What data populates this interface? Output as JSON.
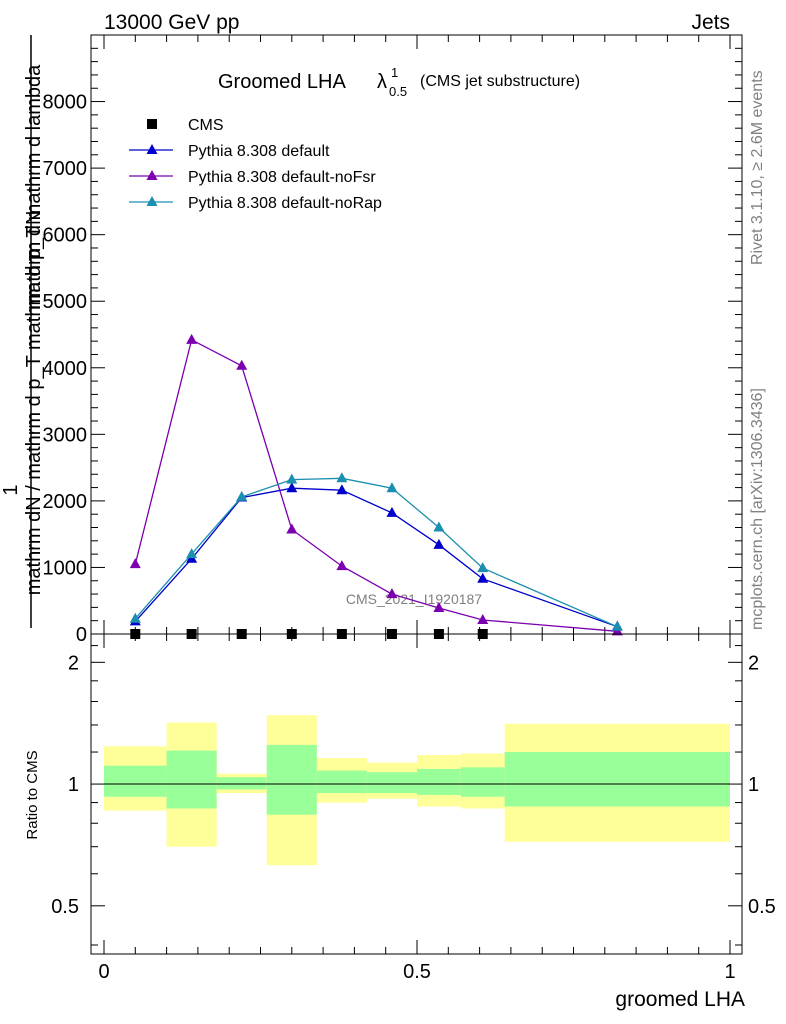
{
  "header": {
    "left": "13000 GeV pp",
    "right": "Jets"
  },
  "side": {
    "rivet": "Rivet 3.1.10, ≥ 2.6M events",
    "mcplots": "mcplots.cern.ch [arXiv:1306.3436]"
  },
  "chart_data": [
    {
      "type": "line",
      "title_main": "Groomed LHA",
      "title_lambda": "λ",
      "title_sup": "1",
      "title_sub": "0.5",
      "title_suffix": "(CMS jet substructure)",
      "ylabel_one": "1",
      "ylabel_num": "mathrm dN",
      "ylabel_den": "mathrm dN / mathrm d p_T mathrm d p_T mathrm d lambda",
      "watermark": "CMS_2021_I1920187",
      "xlim": [
        0,
        1
      ],
      "ylim": [
        0,
        9000
      ],
      "yticks": [
        0,
        1000,
        2000,
        3000,
        4000,
        5000,
        6000,
        7000,
        8000
      ],
      "ytick_labels": [
        "0",
        "1000",
        "2000",
        "3000",
        "4000",
        "5000",
        "6000",
        "7000",
        "8000"
      ],
      "legend_position": "top-left",
      "series": [
        {
          "name": "CMS",
          "color": "#000000",
          "marker": "square",
          "x": [
            0.05,
            0.14,
            0.22,
            0.3,
            0.38,
            0.46,
            0.535,
            0.605
          ],
          "y": [
            0,
            0,
            0,
            0,
            0,
            0,
            0,
            0
          ]
        },
        {
          "name": "Pythia 8.308 default",
          "color": "#0000cc",
          "marker": "triangle",
          "x": [
            0.05,
            0.14,
            0.22,
            0.3,
            0.38,
            0.46,
            0.535,
            0.605,
            0.82
          ],
          "y": [
            190,
            1130,
            2050,
            2190,
            2160,
            1820,
            1340,
            830,
            110
          ]
        },
        {
          "name": "Pythia 8.308 default-noFsr",
          "color": "#7a00b0",
          "marker": "triangle",
          "x": [
            0.05,
            0.14,
            0.22,
            0.3,
            0.38,
            0.46,
            0.535,
            0.605,
            0.82
          ],
          "y": [
            1050,
            4420,
            4030,
            1570,
            1020,
            600,
            390,
            210,
            40
          ]
        },
        {
          "name": "Pythia 8.308 default-noRap",
          "color": "#1b8fb0",
          "marker": "triangle",
          "x": [
            0.05,
            0.14,
            0.22,
            0.3,
            0.38,
            0.46,
            0.535,
            0.605,
            0.82
          ],
          "y": [
            230,
            1200,
            2060,
            2320,
            2340,
            2190,
            1600,
            990,
            110
          ]
        }
      ]
    },
    {
      "type": "area",
      "ylabel": "Ratio to CMS",
      "xlabel": "groomed LHA",
      "xlim": [
        0,
        1
      ],
      "ylim": [
        0.38,
        2.35
      ],
      "log_y": true,
      "yticks": [
        0.5,
        1,
        2
      ],
      "ytick_labels": [
        "0.5",
        "1",
        "2"
      ],
      "xticks": [
        0,
        0.5,
        1
      ],
      "xtick_labels": [
        "0",
        "0.5",
        "1"
      ],
      "band_colors": {
        "inner": "#99ff99",
        "outer": "#ffff99"
      },
      "bands": [
        {
          "x0": 0.0,
          "x1": 0.1,
          "inner": [
            0.93,
            1.11
          ],
          "outer": [
            0.86,
            1.24
          ]
        },
        {
          "x0": 0.1,
          "x1": 0.18,
          "inner": [
            0.87,
            1.21
          ],
          "outer": [
            0.7,
            1.42
          ]
        },
        {
          "x0": 0.18,
          "x1": 0.26,
          "inner": [
            0.97,
            1.04
          ],
          "outer": [
            0.95,
            1.06
          ]
        },
        {
          "x0": 0.26,
          "x1": 0.34,
          "inner": [
            0.84,
            1.25
          ],
          "outer": [
            0.63,
            1.48
          ]
        },
        {
          "x0": 0.34,
          "x1": 0.42,
          "inner": [
            0.95,
            1.08
          ],
          "outer": [
            0.9,
            1.16
          ]
        },
        {
          "x0": 0.42,
          "x1": 0.5,
          "inner": [
            0.95,
            1.07
          ],
          "outer": [
            0.92,
            1.13
          ]
        },
        {
          "x0": 0.5,
          "x1": 0.57,
          "inner": [
            0.94,
            1.09
          ],
          "outer": [
            0.88,
            1.18
          ]
        },
        {
          "x0": 0.57,
          "x1": 0.64,
          "inner": [
            0.93,
            1.1
          ],
          "outer": [
            0.87,
            1.19
          ]
        },
        {
          "x0": 0.64,
          "x1": 1.0,
          "inner": [
            0.88,
            1.2
          ],
          "outer": [
            0.72,
            1.41
          ]
        }
      ]
    }
  ]
}
